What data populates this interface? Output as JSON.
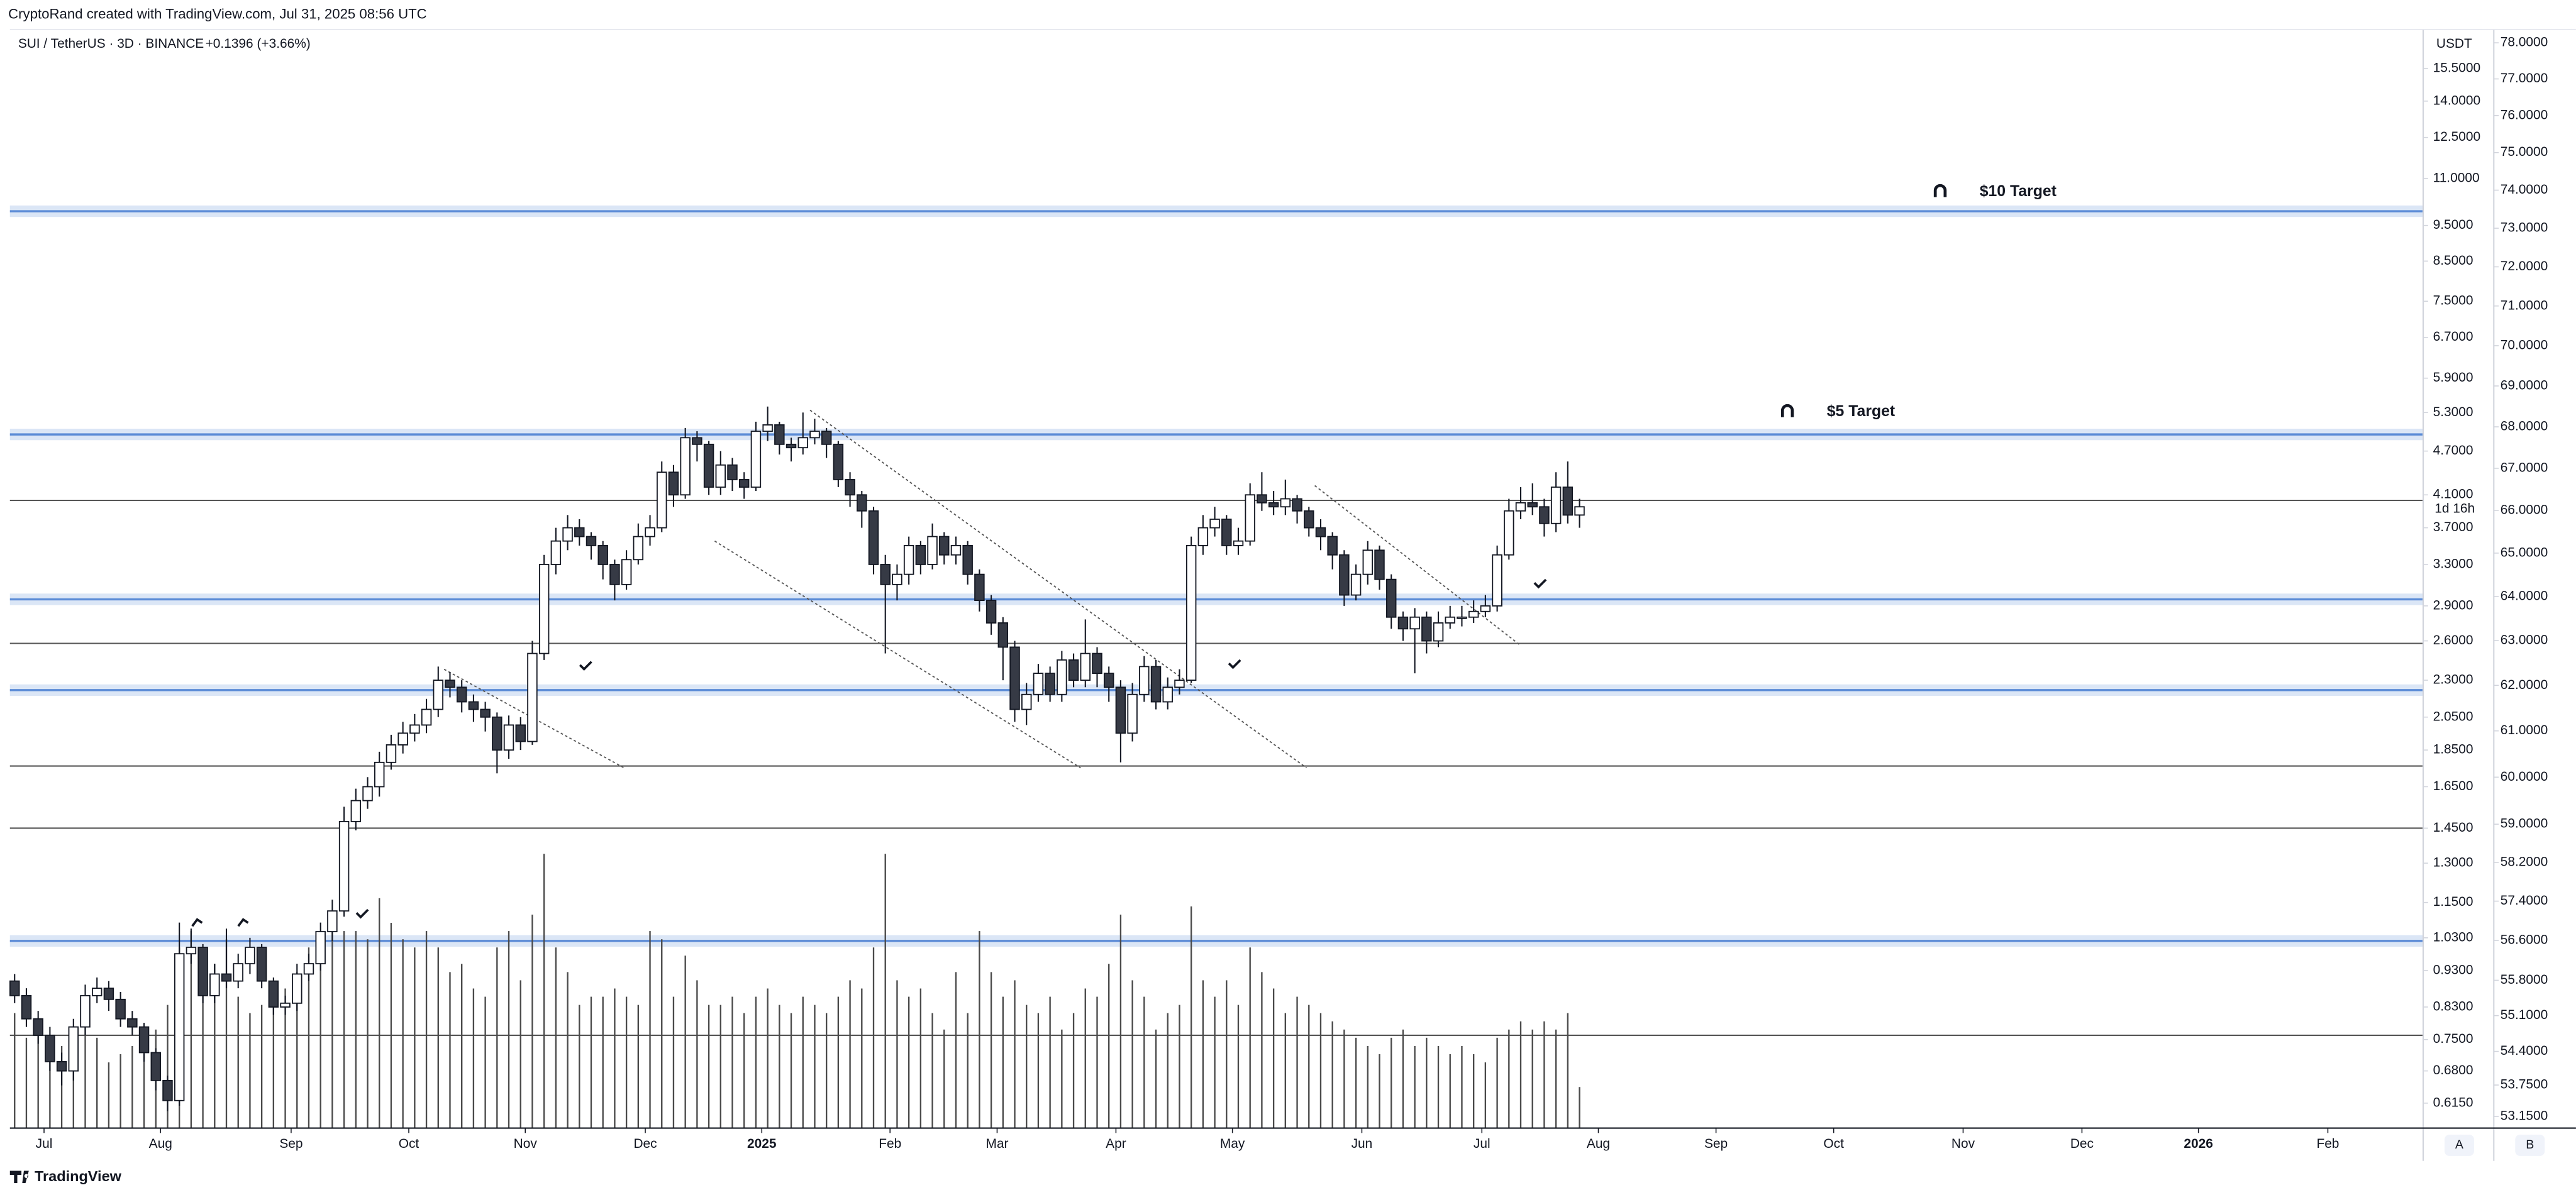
{
  "header": {
    "credit": "CryptoRand created with TradingView.com, Jul 31, 2025 08:56 UTC",
    "symbol": "SUI / TetherUS · 3D · BINANCE",
    "change": "+0.1396 (+3.66%)",
    "currency": "USDT",
    "countdown": "1d 16h",
    "brand": "TradingView",
    "scale_a": "A",
    "scale_b": "B"
  },
  "chart_data": {
    "type": "candlestick",
    "log": true,
    "y2log": true,
    "annotations": [
      "$10 Target",
      "$5 Target"
    ],
    "xlim": [
      -0.4,
      204.7
    ],
    "ylim": [
      0.569,
      17.5
    ],
    "y2lim": [
      52.93,
      78.37
    ],
    "xticks": [
      {
        "value": 2.5,
        "label": "Jul"
      },
      {
        "value": 12.4,
        "label": "Aug"
      },
      {
        "value": 23.5,
        "label": "Sep"
      },
      {
        "value": 33.5,
        "label": "Oct"
      },
      {
        "value": 43.4,
        "label": "Nov"
      },
      {
        "value": 53.6,
        "label": "Dec"
      },
      {
        "value": 63.5,
        "label": "2025"
      },
      {
        "value": 74.4,
        "label": "Feb"
      },
      {
        "value": 83.5,
        "label": "Mar"
      },
      {
        "value": 93.6,
        "label": "Apr"
      },
      {
        "value": 103.5,
        "label": "May"
      },
      {
        "value": 114.5,
        "label": "Jun"
      },
      {
        "value": 124.7,
        "label": "Jul"
      },
      {
        "value": 134.6,
        "label": "Aug"
      },
      {
        "value": 144.6,
        "label": "Sep"
      },
      {
        "value": 154.6,
        "label": "Oct"
      },
      {
        "value": 165.6,
        "label": "Nov"
      },
      {
        "value": 175.7,
        "label": "Dec"
      },
      {
        "value": 185.6,
        "label": "2026"
      },
      {
        "value": 196.6,
        "label": "Feb"
      }
    ],
    "yticks": [
      {
        "value": 15.5,
        "label": "15.5000"
      },
      {
        "value": 14,
        "label": "14.0000"
      },
      {
        "value": 12.5,
        "label": "12.5000"
      },
      {
        "value": 11,
        "label": "11.0000"
      },
      {
        "value": 9.5,
        "label": "9.5000"
      },
      {
        "value": 8.5,
        "label": "8.5000"
      },
      {
        "value": 7.5,
        "label": "7.5000"
      },
      {
        "value": 6.7,
        "label": "6.7000"
      },
      {
        "value": 5.9,
        "label": "5.9000"
      },
      {
        "value": 5.3,
        "label": "5.3000"
      },
      {
        "value": 4.7,
        "label": "4.7000"
      },
      {
        "value": 4.1,
        "label": "4.1000"
      },
      {
        "value": 3.7,
        "label": "3.7000"
      },
      {
        "value": 3.3,
        "label": "3.3000"
      },
      {
        "value": 2.9,
        "label": "2.9000"
      },
      {
        "value": 2.6,
        "label": "2.6000"
      },
      {
        "value": 2.3,
        "label": "2.3000"
      },
      {
        "value": 2.05,
        "label": "2.0500"
      },
      {
        "value": 1.85,
        "label": "1.8500"
      },
      {
        "value": 1.65,
        "label": "1.6500"
      },
      {
        "value": 1.45,
        "label": "1.4500"
      },
      {
        "value": 1.3,
        "label": "1.3000"
      },
      {
        "value": 1.15,
        "label": "1.1500"
      },
      {
        "value": 1.03,
        "label": "1.0300"
      },
      {
        "value": 0.93,
        "label": "0.9300"
      },
      {
        "value": 0.83,
        "label": "0.8300"
      },
      {
        "value": 0.75,
        "label": "0.7500"
      },
      {
        "value": 0.68,
        "label": "0.6800"
      },
      {
        "value": 0.615,
        "label": "0.6150"
      }
    ],
    "y2ticks": [
      {
        "value": 78,
        "label": "78.0000"
      },
      {
        "value": 77,
        "label": "77.0000"
      },
      {
        "value": 76,
        "label": "76.0000"
      },
      {
        "value": 75,
        "label": "75.0000"
      },
      {
        "value": 74,
        "label": "74.0000"
      },
      {
        "value": 73,
        "label": "73.0000"
      },
      {
        "value": 72,
        "label": "72.0000"
      },
      {
        "value": 71,
        "label": "71.0000"
      },
      {
        "value": 70,
        "label": "70.0000"
      },
      {
        "value": 69,
        "label": "69.0000"
      },
      {
        "value": 68,
        "label": "68.0000"
      },
      {
        "value": 67,
        "label": "67.0000"
      },
      {
        "value": 66,
        "label": "66.0000"
      },
      {
        "value": 65,
        "label": "65.0000"
      },
      {
        "value": 64,
        "label": "64.0000"
      },
      {
        "value": 63,
        "label": "63.0000"
      },
      {
        "value": 62,
        "label": "62.0000"
      },
      {
        "value": 61,
        "label": "61.0000"
      },
      {
        "value": 60,
        "label": "60.0000"
      },
      {
        "value": 59,
        "label": "59.0000"
      },
      {
        "value": 58.2,
        "label": "58.2000"
      },
      {
        "value": 57.4,
        "label": "57.4000"
      },
      {
        "value": 56.6,
        "label": "56.6000"
      },
      {
        "value": 55.8,
        "label": "55.8000"
      },
      {
        "value": 55.1,
        "label": "55.1000"
      },
      {
        "value": 54.4,
        "label": "54.4000"
      },
      {
        "value": 53.75,
        "label": "53.7500"
      },
      {
        "value": 53.15,
        "label": "53.1500"
      }
    ],
    "zones": [
      9.93,
      4.95,
      2.96,
      2.23,
      1.02
    ],
    "levels": [
      4.03,
      2.58,
      1.76,
      1.45,
      0.76
    ],
    "trendlines": [
      [
        36.5,
        2.38,
        51.8,
        1.75
      ],
      [
        59.5,
        3.55,
        90.6,
        1.75
      ],
      [
        67.6,
        5.34,
        109.8,
        1.75
      ],
      [
        110.5,
        4.22,
        127.9,
        2.57
      ]
    ],
    "up_color": "#ffffff",
    "down_color": "#363a45",
    "zone_color": "#5b8bd6",
    "volume_color": "#4a4a4a",
    "candles": [
      [
        0.9,
        0.92,
        0.84,
        0.86
      ],
      [
        0.86,
        0.88,
        0.78,
        0.8
      ],
      [
        0.8,
        0.82,
        0.74,
        0.76
      ],
      [
        0.76,
        0.78,
        0.68,
        0.7
      ],
      [
        0.7,
        0.72,
        0.65,
        0.68
      ],
      [
        0.68,
        0.8,
        0.66,
        0.78
      ],
      [
        0.78,
        0.89,
        0.76,
        0.86
      ],
      [
        0.86,
        0.91,
        0.84,
        0.88
      ],
      [
        0.88,
        0.9,
        0.82,
        0.85
      ],
      [
        0.85,
        0.87,
        0.78,
        0.8
      ],
      [
        0.8,
        0.82,
        0.76,
        0.78
      ],
      [
        0.78,
        0.79,
        0.7,
        0.72
      ],
      [
        0.72,
        0.73,
        0.64,
        0.66
      ],
      [
        0.66,
        0.67,
        0.6,
        0.62
      ],
      [
        0.62,
        1.08,
        0.61,
        0.98
      ],
      [
        0.98,
        1.06,
        0.95,
        1.0
      ],
      [
        1.0,
        1.01,
        0.84,
        0.86
      ],
      [
        0.86,
        0.95,
        0.84,
        0.92
      ],
      [
        0.92,
        1.06,
        0.88,
        0.9
      ],
      [
        0.9,
        0.98,
        0.88,
        0.95
      ],
      [
        0.95,
        1.03,
        0.92,
        1.0
      ],
      [
        1.0,
        1.01,
        0.88,
        0.9
      ],
      [
        0.9,
        0.91,
        0.81,
        0.83
      ],
      [
        0.83,
        0.86,
        0.81,
        0.84
      ],
      [
        0.84,
        0.95,
        0.82,
        0.92
      ],
      [
        0.92,
        0.98,
        0.9,
        0.95
      ],
      [
        0.95,
        1.08,
        0.93,
        1.05
      ],
      [
        1.05,
        1.16,
        1.02,
        1.12
      ],
      [
        1.12,
        1.55,
        1.1,
        1.48
      ],
      [
        1.48,
        1.64,
        1.44,
        1.58
      ],
      [
        1.58,
        1.7,
        1.54,
        1.65
      ],
      [
        1.65,
        1.84,
        1.6,
        1.78
      ],
      [
        1.78,
        1.94,
        1.74,
        1.88
      ],
      [
        1.88,
        2.02,
        1.83,
        1.95
      ],
      [
        1.95,
        2.07,
        1.9,
        2.0
      ],
      [
        2.0,
        2.17,
        1.95,
        2.1
      ],
      [
        2.1,
        2.4,
        2.05,
        2.3
      ],
      [
        2.3,
        2.36,
        2.18,
        2.25
      ],
      [
        2.25,
        2.3,
        2.08,
        2.15
      ],
      [
        2.15,
        2.2,
        2.02,
        2.1
      ],
      [
        2.1,
        2.15,
        1.96,
        2.05
      ],
      [
        2.05,
        2.08,
        1.72,
        1.85
      ],
      [
        1.85,
        2.06,
        1.8,
        2.0
      ],
      [
        2.0,
        2.05,
        1.85,
        1.9
      ],
      [
        1.9,
        2.6,
        1.88,
        2.5
      ],
      [
        2.5,
        3.4,
        2.45,
        3.3
      ],
      [
        3.3,
        3.7,
        3.2,
        3.55
      ],
      [
        3.55,
        3.85,
        3.45,
        3.7
      ],
      [
        3.7,
        3.8,
        3.5,
        3.6
      ],
      [
        3.6,
        3.65,
        3.35,
        3.5
      ],
      [
        3.5,
        3.55,
        3.15,
        3.3
      ],
      [
        3.3,
        3.35,
        2.95,
        3.1
      ],
      [
        3.1,
        3.45,
        3.05,
        3.35
      ],
      [
        3.35,
        3.75,
        3.3,
        3.6
      ],
      [
        3.6,
        3.85,
        3.5,
        3.7
      ],
      [
        3.7,
        4.55,
        3.65,
        4.4
      ],
      [
        4.4,
        4.5,
        3.95,
        4.1
      ],
      [
        4.1,
        5.05,
        4.05,
        4.9
      ],
      [
        4.9,
        5.0,
        4.55,
        4.8
      ],
      [
        4.8,
        4.85,
        4.1,
        4.2
      ],
      [
        4.2,
        4.7,
        4.1,
        4.5
      ],
      [
        4.5,
        4.6,
        4.15,
        4.3
      ],
      [
        4.3,
        4.4,
        4.05,
        4.2
      ],
      [
        4.2,
        5.15,
        4.15,
        5.0
      ],
      [
        5.0,
        5.4,
        4.85,
        5.1
      ],
      [
        5.1,
        5.15,
        4.65,
        4.8
      ],
      [
        4.8,
        4.9,
        4.55,
        4.75
      ],
      [
        4.75,
        5.3,
        4.65,
        4.9
      ],
      [
        4.9,
        5.2,
        4.8,
        5.0
      ],
      [
        5.0,
        5.05,
        4.6,
        4.8
      ],
      [
        4.8,
        4.85,
        4.2,
        4.3
      ],
      [
        4.3,
        4.4,
        3.95,
        4.1
      ],
      [
        4.1,
        4.15,
        3.7,
        3.9
      ],
      [
        3.9,
        3.95,
        3.2,
        3.3
      ],
      [
        3.3,
        3.4,
        2.5,
        3.1
      ],
      [
        3.1,
        3.3,
        2.95,
        3.2
      ],
      [
        3.2,
        3.6,
        3.1,
        3.5
      ],
      [
        3.5,
        3.55,
        3.2,
        3.3
      ],
      [
        3.3,
        3.75,
        3.25,
        3.6
      ],
      [
        3.6,
        3.65,
        3.3,
        3.4
      ],
      [
        3.4,
        3.6,
        3.3,
        3.5
      ],
      [
        3.5,
        3.55,
        3.1,
        3.2
      ],
      [
        3.2,
        3.25,
        2.85,
        2.95
      ],
      [
        2.95,
        3.0,
        2.65,
        2.75
      ],
      [
        2.75,
        2.8,
        2.3,
        2.55
      ],
      [
        2.55,
        2.6,
        2.02,
        2.1
      ],
      [
        2.1,
        2.28,
        2.0,
        2.2
      ],
      [
        2.2,
        2.42,
        2.15,
        2.35
      ],
      [
        2.35,
        2.4,
        2.15,
        2.2
      ],
      [
        2.2,
        2.52,
        2.15,
        2.45
      ],
      [
        2.45,
        2.5,
        2.25,
        2.3
      ],
      [
        2.3,
        2.78,
        2.25,
        2.5
      ],
      [
        2.5,
        2.55,
        2.25,
        2.35
      ],
      [
        2.35,
        2.4,
        2.15,
        2.25
      ],
      [
        2.25,
        2.3,
        1.78,
        1.95
      ],
      [
        1.95,
        2.28,
        1.9,
        2.2
      ],
      [
        2.2,
        2.48,
        2.15,
        2.4
      ],
      [
        2.4,
        2.45,
        2.1,
        2.15
      ],
      [
        2.15,
        2.32,
        2.1,
        2.25
      ],
      [
        2.25,
        2.38,
        2.2,
        2.3
      ],
      [
        2.3,
        3.6,
        2.28,
        3.5
      ],
      [
        3.5,
        3.85,
        3.4,
        3.7
      ],
      [
        3.7,
        3.95,
        3.6,
        3.8
      ],
      [
        3.8,
        3.85,
        3.4,
        3.5
      ],
      [
        3.5,
        3.7,
        3.4,
        3.55
      ],
      [
        3.55,
        4.25,
        3.5,
        4.1
      ],
      [
        4.1,
        4.4,
        3.9,
        4.0
      ],
      [
        4.0,
        4.15,
        3.85,
        3.95
      ],
      [
        3.95,
        4.3,
        3.85,
        4.05
      ],
      [
        4.05,
        4.1,
        3.75,
        3.9
      ],
      [
        3.9,
        3.95,
        3.6,
        3.7
      ],
      [
        3.7,
        3.8,
        3.45,
        3.6
      ],
      [
        3.6,
        3.65,
        3.25,
        3.4
      ],
      [
        3.4,
        3.45,
        2.9,
        3.0
      ],
      [
        3.0,
        3.3,
        2.95,
        3.2
      ],
      [
        3.2,
        3.55,
        3.1,
        3.45
      ],
      [
        3.45,
        3.5,
        3.05,
        3.15
      ],
      [
        3.15,
        3.2,
        2.7,
        2.8
      ],
      [
        2.8,
        2.85,
        2.6,
        2.7
      ],
      [
        2.7,
        2.88,
        2.35,
        2.8
      ],
      [
        2.8,
        2.85,
        2.5,
        2.6
      ],
      [
        2.6,
        2.85,
        2.55,
        2.75
      ],
      [
        2.75,
        2.9,
        2.7,
        2.8
      ],
      [
        2.8,
        2.9,
        2.72,
        2.8
      ],
      [
        2.8,
        2.95,
        2.75,
        2.85
      ],
      [
        2.85,
        3.0,
        2.8,
        2.9
      ],
      [
        2.9,
        3.5,
        2.85,
        3.4
      ],
      [
        3.4,
        4.05,
        3.35,
        3.9
      ],
      [
        3.9,
        4.2,
        3.8,
        4.0
      ],
      [
        4.0,
        4.25,
        3.85,
        3.95
      ],
      [
        3.95,
        4.05,
        3.6,
        3.75
      ],
      [
        3.75,
        4.4,
        3.65,
        4.2
      ],
      [
        4.2,
        4.55,
        3.75,
        3.85
      ],
      [
        3.85,
        4.05,
        3.7,
        3.95
      ]
    ],
    "volume": [
      70,
      55,
      60,
      45,
      50,
      60,
      65,
      55,
      40,
      45,
      50,
      45,
      60,
      75,
      110,
      120,
      95,
      100,
      115,
      80,
      70,
      75,
      80,
      85,
      95,
      110,
      110,
      130,
      120,
      120,
      115,
      140,
      125,
      115,
      110,
      120,
      110,
      95,
      100,
      85,
      80,
      110,
      120,
      90,
      130,
      167,
      110,
      95,
      75,
      80,
      80,
      85,
      80,
      75,
      120,
      115,
      80,
      105,
      90,
      75,
      75,
      80,
      70,
      80,
      85,
      75,
      70,
      80,
      75,
      70,
      80,
      90,
      85,
      110,
      167,
      90,
      80,
      85,
      70,
      60,
      95,
      70,
      120,
      95,
      80,
      90,
      75,
      70,
      80,
      60,
      70,
      85,
      80,
      100,
      130,
      90,
      80,
      60,
      70,
      75,
      135,
      90,
      80,
      90,
      75,
      110,
      95,
      85,
      70,
      80,
      75,
      70,
      65,
      60,
      55,
      50,
      45,
      55,
      60,
      50,
      55,
      50,
      45,
      50,
      45,
      40,
      55,
      60,
      65,
      60,
      65,
      60,
      70,
      25
    ]
  }
}
